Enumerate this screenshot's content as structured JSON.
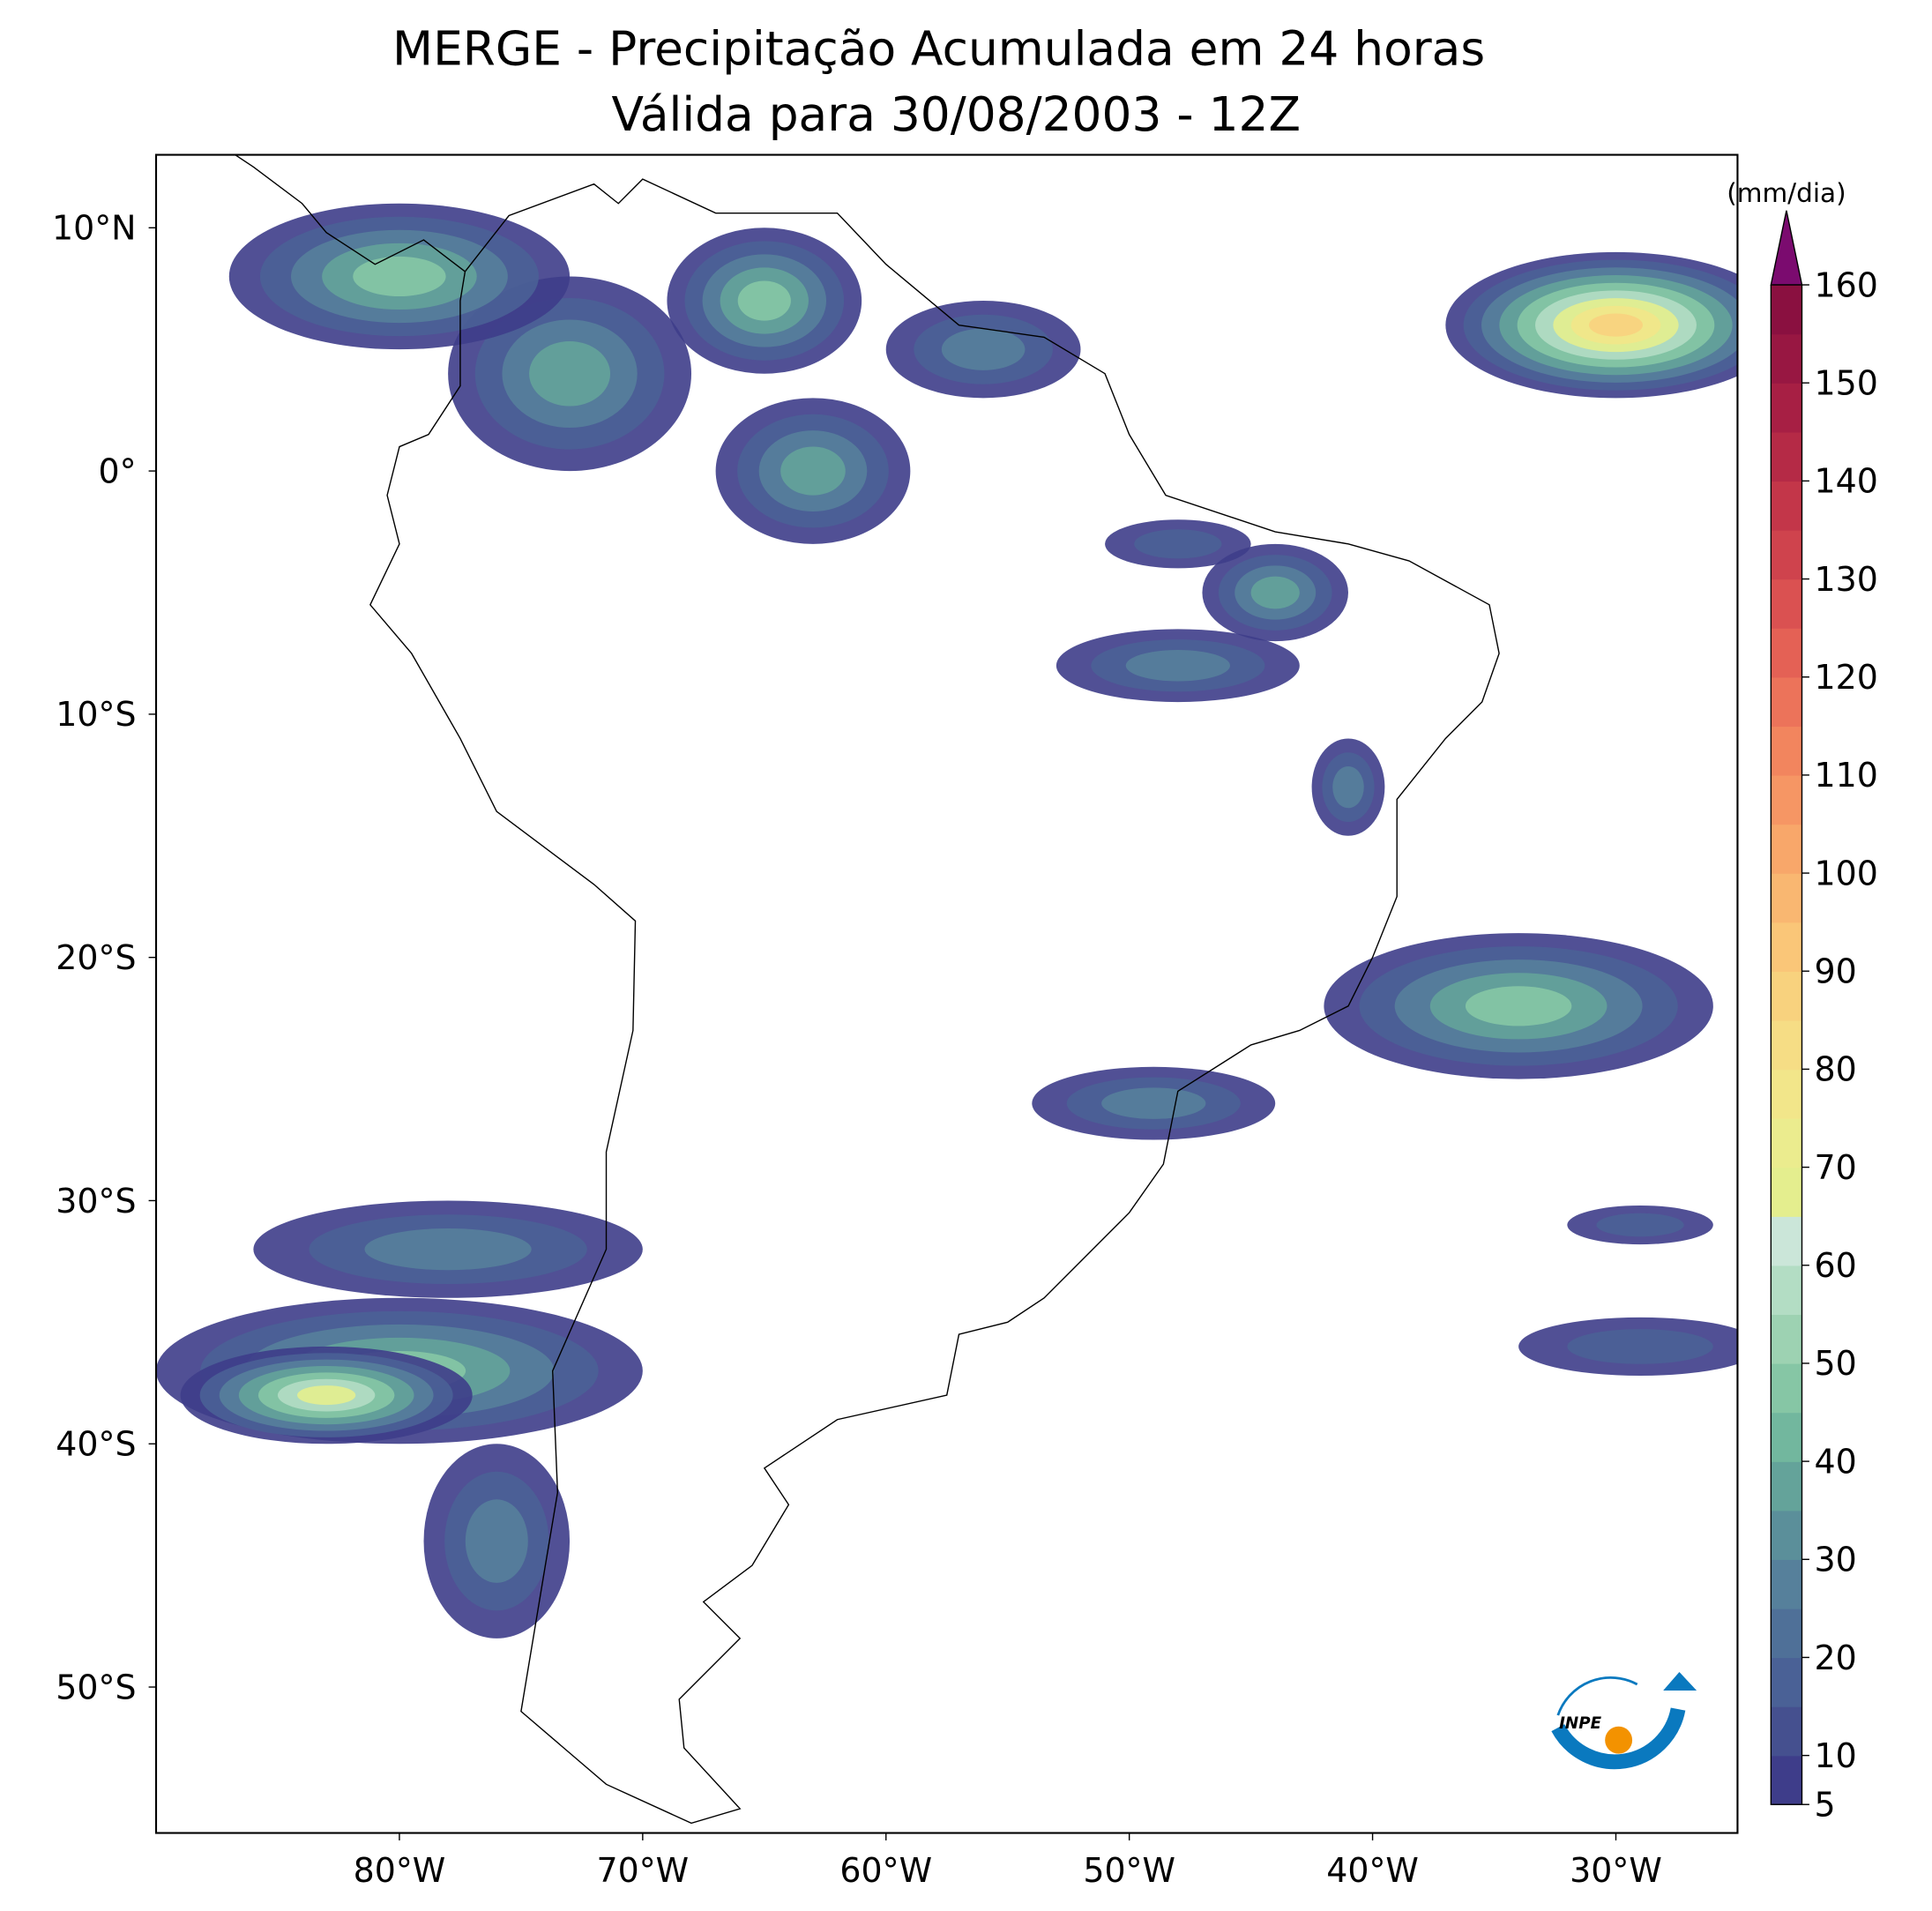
{
  "title": [
    "MERGE - Precipitação Acumulada em 24 horas",
    "Válida para 30/08/2003 - 12Z"
  ],
  "map": {
    "type": "map",
    "lonlim": [
      -90,
      -25
    ],
    "latlim": [
      -56,
      13
    ],
    "xticks": [
      {
        "value": -80,
        "label": "80°W"
      },
      {
        "value": -70,
        "label": "70°W"
      },
      {
        "value": -60,
        "label": "60°W"
      },
      {
        "value": -50,
        "label": "50°W"
      },
      {
        "value": -40,
        "label": "40°W"
      },
      {
        "value": -30,
        "label": "30°W"
      }
    ],
    "yticks": [
      {
        "value": 10,
        "label": "10°N"
      },
      {
        "value": 0,
        "label": "0°"
      },
      {
        "value": -10,
        "label": "10°S"
      },
      {
        "value": -20,
        "label": "20°S"
      },
      {
        "value": -30,
        "label": "30°S"
      },
      {
        "value": -40,
        "label": "40°S"
      },
      {
        "value": -50,
        "label": "50°S"
      }
    ]
  },
  "colorbar": {
    "label": "(mm/dia)",
    "lim": [
      5,
      160
    ],
    "ticks": [
      5,
      10,
      20,
      30,
      40,
      50,
      60,
      70,
      80,
      90,
      100,
      110,
      120,
      130,
      140,
      150,
      160
    ],
    "colors": [
      "#3e3d8a",
      "#45508f",
      "#4a6196",
      "#4f7098",
      "#56809b",
      "#5b8f9a",
      "#64a39a",
      "#72b79e",
      "#86c6a5",
      "#9dd2b2",
      "#b3ddc4",
      "#cbe6d9",
      "#e4ee8e",
      "#ebec8e",
      "#f2e68a",
      "#f6dd85",
      "#f8d27e",
      "#fac678",
      "#f9b771",
      "#f8a76a",
      "#f69664",
      "#f2855e",
      "#ec735a",
      "#e46155",
      "#da5151",
      "#cf434d",
      "#c33649",
      "#b52a46",
      "#a71f44",
      "#981742",
      "#8a1040"
    ],
    "extend_color": "#7b0b6f"
  },
  "logo": "INPE"
}
